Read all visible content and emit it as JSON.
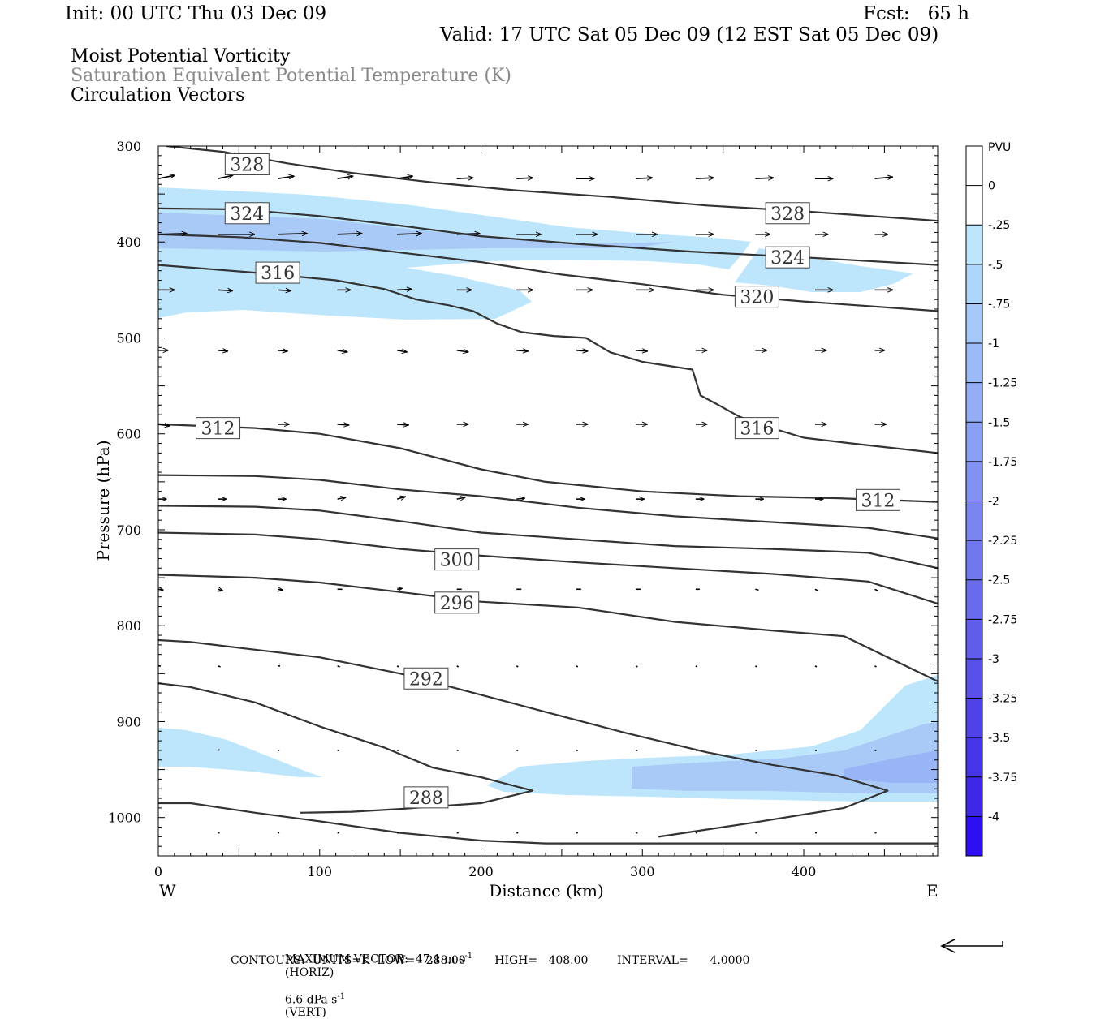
{
  "header": {
    "init": "Init: 00 UTC Thu 03 Dec 09",
    "fcst": "Fcst:   65 h",
    "valid": "Valid: 17 UTC Sat 05 Dec 09 (12 EST Sat 05 Dec 09)",
    "title1": "Moist Potential Vorticity",
    "title2": "Saturation Equivalent Potential Temperature (K)",
    "title3": "Circulation Vectors"
  },
  "colors": {
    "fill_light": "#bde6fd",
    "fill_mid": "#a9c9f7",
    "fill_dark": "#9ab5f5",
    "contour": "#333333",
    "title2": "#888888"
  },
  "chart_data": {
    "type": "line",
    "xlabel": "Distance (km)",
    "ylabel": "Pressure (hPa)",
    "xlim": [
      0,
      483
    ],
    "ylim": [
      1040,
      300
    ],
    "y_scale": "linear, inverted (pressure decreasing upward)",
    "x_ticks": [
      "0",
      "100",
      "200",
      "300",
      "400"
    ],
    "y_ticks": [
      "300",
      "400",
      "500",
      "600",
      "700",
      "800",
      "900",
      "1000"
    ],
    "x_end_labels": {
      "west": "W",
      "east": "E"
    },
    "contour_labels": [
      {
        "text": "328",
        "x": 55,
        "p": 319
      },
      {
        "text": "324",
        "x": 55,
        "p": 370
      },
      {
        "text": "316",
        "x": 74,
        "p": 432
      },
      {
        "text": "328",
        "x": 390,
        "p": 370
      },
      {
        "text": "324",
        "x": 390,
        "p": 416
      },
      {
        "text": "320",
        "x": 371,
        "p": 457
      },
      {
        "text": "316",
        "x": 371,
        "p": 594
      },
      {
        "text": "312",
        "x": 37,
        "p": 594
      },
      {
        "text": "312",
        "x": 446,
        "p": 669
      },
      {
        "text": "300",
        "x": 185,
        "p": 731
      },
      {
        "text": "296",
        "x": 185,
        "p": 776
      },
      {
        "text": "292",
        "x": 166,
        "p": 855
      },
      {
        "text": "288",
        "x": 166,
        "p": 979
      }
    ],
    "contours": [
      {
        "level": 328,
        "points": [
          [
            5,
            300
          ],
          [
            40,
            306
          ],
          [
            80,
            318
          ],
          [
            120,
            328
          ],
          [
            170,
            338
          ],
          [
            220,
            346
          ],
          [
            280,
            353
          ],
          [
            340,
            362
          ],
          [
            400,
            368
          ],
          [
            483,
            378
          ]
        ]
      },
      {
        "level": 324,
        "points": [
          [
            0,
            365
          ],
          [
            50,
            366
          ],
          [
            100,
            373
          ],
          [
            150,
            383
          ],
          [
            200,
            394
          ],
          [
            260,
            402
          ],
          [
            330,
            410
          ],
          [
            400,
            416
          ],
          [
            483,
            424
          ]
        ]
      },
      {
        "level": 320,
        "points": [
          [
            0,
            392
          ],
          [
            50,
            395
          ],
          [
            100,
            401
          ],
          [
            150,
            411
          ],
          [
            200,
            421
          ],
          [
            250,
            434
          ],
          [
            300,
            444
          ],
          [
            350,
            455
          ],
          [
            400,
            462
          ],
          [
            483,
            472
          ]
        ]
      },
      {
        "level": 316,
        "points": [
          [
            0,
            424
          ],
          [
            60,
            432
          ],
          [
            110,
            440
          ],
          [
            140,
            449
          ],
          [
            160,
            460
          ],
          [
            180,
            466
          ],
          [
            195,
            472
          ],
          [
            210,
            485
          ],
          [
            225,
            494
          ],
          [
            245,
            498
          ],
          [
            265,
            500
          ],
          [
            280,
            515
          ],
          [
            300,
            525
          ],
          [
            331,
            533
          ],
          [
            336,
            560
          ],
          [
            345,
            568
          ],
          [
            360,
            582
          ],
          [
            380,
            594
          ],
          [
            400,
            604
          ],
          [
            430,
            610
          ],
          [
            483,
            620
          ]
        ]
      },
      {
        "level": 312,
        "points": [
          [
            0,
            590
          ],
          [
            60,
            594
          ],
          [
            100,
            600
          ],
          [
            150,
            615
          ],
          [
            200,
            637
          ],
          [
            240,
            650
          ],
          [
            300,
            660
          ],
          [
            360,
            665
          ],
          [
            420,
            667
          ],
          [
            483,
            671
          ]
        ]
      },
      {
        "level": 308,
        "points": [
          [
            0,
            643
          ],
          [
            60,
            644
          ],
          [
            100,
            648
          ],
          [
            150,
            658
          ],
          [
            200,
            665
          ],
          [
            260,
            677
          ],
          [
            320,
            686
          ],
          [
            380,
            692
          ],
          [
            440,
            698
          ],
          [
            483,
            709
          ]
        ]
      },
      {
        "level": 304,
        "points": [
          [
            0,
            675
          ],
          [
            60,
            676
          ],
          [
            100,
            680
          ],
          [
            150,
            691
          ],
          [
            200,
            703
          ],
          [
            260,
            710
          ],
          [
            320,
            717
          ],
          [
            380,
            720
          ],
          [
            440,
            724
          ],
          [
            483,
            740
          ]
        ]
      },
      {
        "level": 300,
        "points": [
          [
            0,
            703
          ],
          [
            60,
            705
          ],
          [
            100,
            710
          ],
          [
            150,
            720
          ],
          [
            200,
            727
          ],
          [
            260,
            734
          ],
          [
            320,
            740
          ],
          [
            380,
            746
          ],
          [
            440,
            754
          ],
          [
            483,
            777
          ]
        ]
      },
      {
        "level": 296,
        "points": [
          [
            0,
            747
          ],
          [
            60,
            750
          ],
          [
            100,
            755
          ],
          [
            150,
            765
          ],
          [
            200,
            775
          ],
          [
            260,
            781
          ],
          [
            320,
            796
          ],
          [
            380,
            805
          ],
          [
            425,
            811
          ],
          [
            483,
            858
          ]
        ]
      },
      {
        "level": 292,
        "points": [
          [
            0,
            815
          ],
          [
            20,
            817
          ],
          [
            60,
            825
          ],
          [
            100,
            833
          ],
          [
            150,
            850
          ],
          [
            200,
            872
          ],
          [
            240,
            890
          ],
          [
            290,
            912
          ],
          [
            340,
            932
          ],
          [
            380,
            945
          ],
          [
            420,
            956
          ],
          [
            452,
            972
          ],
          [
            425,
            990
          ],
          [
            370,
            1005
          ],
          [
            310,
            1020
          ]
        ]
      },
      {
        "level": 288,
        "points": [
          [
            0,
            860
          ],
          [
            20,
            864
          ],
          [
            60,
            880
          ],
          [
            100,
            905
          ],
          [
            140,
            927
          ],
          [
            170,
            948
          ],
          [
            200,
            958
          ],
          [
            232,
            972
          ],
          [
            200,
            985
          ],
          [
            150,
            991
          ],
          [
            120,
            994
          ],
          [
            88,
            995
          ]
        ]
      },
      {
        "level": 284,
        "points": [
          [
            0,
            985
          ],
          [
            20,
            985
          ],
          [
            60,
            995
          ],
          [
            100,
            1004
          ],
          [
            150,
            1016
          ],
          [
            200,
            1024
          ],
          [
            240,
            1027
          ],
          [
            300,
            1027
          ],
          [
            400,
            1027
          ],
          [
            483,
            1027
          ]
        ]
      }
    ],
    "colorbar": {
      "unit": "PVU",
      "labels": [
        "0",
        "-.25",
        "-.5",
        "-.75",
        "-1",
        "-1.25",
        "-1.5",
        "-1.75",
        "-2",
        "-2.25",
        "-2.5",
        "-2.75",
        "-3",
        "-3.25",
        "-3.5",
        "-3.75",
        "-4"
      ],
      "colors": [
        "#ffffff",
        "#ffffff",
        "#bde6fd",
        "#aed6fb",
        "#a5c8f8",
        "#9cbaf6",
        "#94adf5",
        "#8b9ff3",
        "#8292f1",
        "#7a85ef",
        "#7178ee",
        "#696aec",
        "#605deb",
        "#5850e9",
        "#4f42e8",
        "#4635e6",
        "#3e28e5",
        "#2d0ff1"
      ]
    },
    "vectors": [
      {
        "p": 334,
        "x": [
          0,
          37,
          74,
          111,
          148,
          185,
          222,
          259,
          296,
          333,
          370,
          407,
          444
        ],
        "dx": [
          20,
          18,
          20,
          19,
          19,
          20,
          20,
          22,
          20,
          22,
          22,
          22,
          22
        ],
        "dy": [
          -4,
          -4,
          -3,
          -3,
          -3,
          -1,
          -1,
          0,
          -1,
          -1,
          -1,
          0,
          -2
        ]
      },
      {
        "p": 392,
        "x": [
          0,
          37,
          74,
          111,
          148,
          185,
          222,
          259,
          296,
          333,
          370,
          407,
          444
        ],
        "dx": [
          35,
          45,
          36,
          30,
          30,
          28,
          30,
          26,
          26,
          22,
          18,
          16,
          16
        ],
        "dy": [
          -1,
          0,
          -1,
          -1,
          -1,
          -1,
          0,
          0,
          0,
          0,
          0,
          0,
          0
        ]
      },
      {
        "p": 450,
        "x": [
          0,
          37,
          74,
          111,
          148,
          185,
          222,
          259,
          296,
          333,
          370,
          407,
          444
        ],
        "dx": [
          20,
          18,
          16,
          16,
          18,
          18,
          20,
          20,
          22,
          22,
          22,
          22,
          22
        ],
        "dy": [
          0,
          1,
          1,
          0,
          -1,
          0,
          0,
          0,
          0,
          0,
          0,
          0,
          0
        ]
      },
      {
        "p": 513,
        "x": [
          0,
          37,
          74,
          111,
          148,
          185,
          222,
          259,
          296,
          333,
          370,
          407,
          444
        ],
        "dx": [
          12,
          12,
          12,
          12,
          12,
          14,
          14,
          14,
          14,
          14,
          14,
          14,
          12
        ],
        "dy": [
          0,
          1,
          1,
          2,
          2,
          2,
          1,
          1,
          1,
          0,
          0,
          0,
          0
        ]
      },
      {
        "p": 590,
        "x": [
          0,
          37,
          74,
          111,
          148,
          185,
          222,
          259,
          296,
          333,
          370,
          407,
          444
        ],
        "dx": [
          14,
          14,
          14,
          14,
          14,
          14,
          14,
          14,
          14,
          14,
          14,
          14,
          14
        ],
        "dy": [
          2,
          1,
          0,
          1,
          1,
          0,
          0,
          0,
          0,
          0,
          0,
          0,
          0
        ]
      },
      {
        "p": 668,
        "x": [
          0,
          37,
          74,
          111,
          148,
          185,
          222,
          259,
          296,
          333,
          370,
          407,
          444
        ],
        "dx": [
          10,
          10,
          10,
          10,
          10,
          10,
          10,
          10,
          10,
          10,
          10,
          10,
          10
        ],
        "dy": [
          0,
          0,
          0,
          -2,
          -3,
          -2,
          -1,
          0,
          0,
          0,
          0,
          0,
          0
        ]
      },
      {
        "p": 762,
        "x": [
          0,
          37,
          74,
          111,
          148,
          185,
          222,
          259,
          296,
          333,
          370,
          407,
          444
        ],
        "dx": [
          6,
          6,
          6,
          6,
          6,
          6,
          6,
          6,
          6,
          5,
          4,
          4,
          4
        ],
        "dy": [
          1,
          2,
          1,
          0,
          -1,
          0,
          0,
          0,
          0,
          0,
          1,
          2,
          2
        ]
      },
      {
        "p": 842,
        "x": [
          0,
          37,
          74,
          111,
          148,
          185,
          222,
          259,
          296,
          333,
          370,
          407,
          444
        ],
        "dx": [
          3,
          3,
          3,
          3,
          2,
          2,
          2,
          2,
          2,
          2,
          2,
          2,
          2
        ],
        "dy": [
          0,
          1,
          0,
          1,
          1,
          1,
          1,
          1,
          1,
          1,
          1,
          1,
          1
        ]
      },
      {
        "p": 930,
        "x": [
          37,
          74,
          111,
          148,
          185,
          222,
          259,
          296,
          333,
          370,
          407,
          444
        ],
        "dx": [
          2,
          2,
          2,
          2,
          2,
          2,
          2,
          2,
          2,
          2,
          2,
          2
        ],
        "dy": [
          -1,
          0,
          0,
          0,
          0,
          0,
          0,
          0,
          0,
          0,
          0,
          0
        ]
      },
      {
        "p": 1016,
        "x": [
          37,
          74,
          111,
          148,
          185,
          222,
          259,
          296,
          333,
          370,
          407,
          444
        ],
        "dx": [
          2,
          2,
          2,
          2,
          2,
          2,
          2,
          2,
          2,
          2,
          2,
          2
        ],
        "dy": [
          0,
          0,
          0,
          0,
          0,
          0,
          0,
          0,
          0,
          0,
          0,
          0
        ]
      }
    ]
  },
  "footer": {
    "line1a": "MAXIMUM VECTOR:  47.1 m s",
    "line1b": "(HORIZ)",
    "line1c": "6.6 dPa s",
    "line1d": "(VERT)",
    "exp": "-1",
    "line2": "CONTOURS:  UNITS=K  LOW=   288.00        HIGH=   408.00        INTERVAL=      4.0000"
  }
}
